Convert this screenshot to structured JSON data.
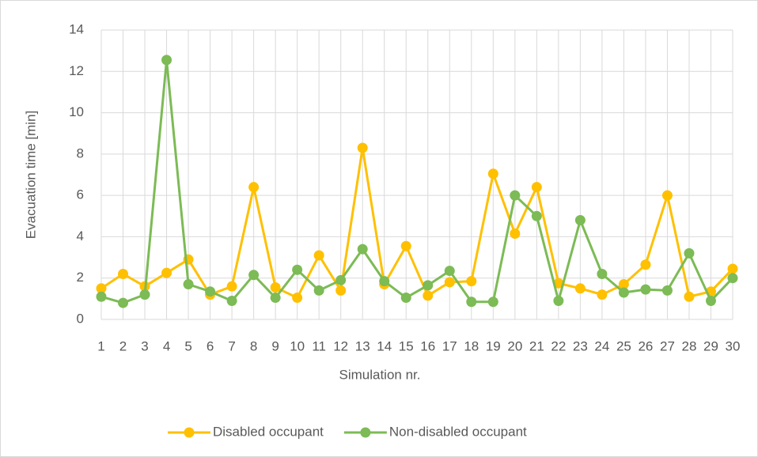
{
  "chart_data": {
    "type": "line",
    "x_label": "Simulation nr.",
    "y_label": "Evacuation time [min]",
    "categories": [
      "1",
      "2",
      "3",
      "4",
      "5",
      "6",
      "7",
      "8",
      "9",
      "10",
      "11",
      "12",
      "13",
      "14",
      "15",
      "16",
      "17",
      "18",
      "19",
      "20",
      "21",
      "22",
      "23",
      "24",
      "25",
      "26",
      "27",
      "28",
      "29",
      "30"
    ],
    "series": [
      {
        "name": "Disabled occupant",
        "color": "#ffc000",
        "values": [
          1.5,
          2.2,
          1.6,
          2.25,
          2.9,
          1.2,
          1.6,
          6.4,
          1.55,
          1.05,
          3.1,
          1.4,
          8.3,
          1.7,
          3.55,
          1.15,
          1.8,
          1.85,
          7.05,
          4.15,
          6.4,
          1.75,
          1.5,
          1.2,
          1.7,
          2.65,
          6.0,
          1.1,
          1.35,
          2.45
        ]
      },
      {
        "name": "Non-disabled occupant",
        "color": "#7cbb55",
        "values": [
          1.1,
          0.8,
          1.2,
          12.55,
          1.7,
          1.35,
          0.9,
          2.15,
          1.05,
          2.4,
          1.4,
          1.9,
          3.4,
          1.85,
          1.05,
          1.65,
          2.35,
          0.85,
          0.85,
          6.0,
          5.0,
          0.9,
          4.8,
          2.2,
          1.3,
          1.45,
          1.4,
          3.2,
          0.9,
          2.0
        ]
      }
    ],
    "ylim": [
      0,
      14
    ],
    "yticks": [
      0,
      2,
      4,
      6,
      8,
      10,
      12,
      14
    ],
    "grid": true,
    "legend": "bottom"
  }
}
